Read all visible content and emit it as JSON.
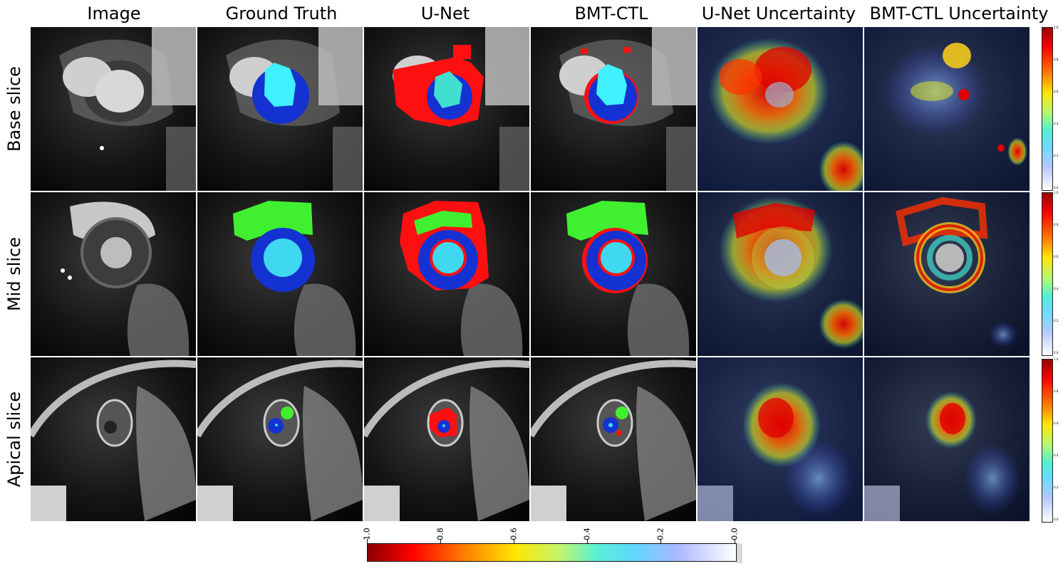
{
  "columns": [
    "Image",
    "Ground Truth",
    "U-Net",
    "BMT-CTL",
    "U-Net  Uncertainty",
    "BMT-CTL  Uncertainty"
  ],
  "rows": [
    "Base slice",
    "Mid slice",
    "Apical slice"
  ],
  "colorbar": {
    "ticks": [
      "1.0",
      "0.8",
      "0.6",
      "0.4",
      "0.2",
      "0.0"
    ],
    "min": 0.0,
    "max": 1.0,
    "colors": [
      "#8b0000",
      "#ff0000",
      "#ff7a00",
      "#ffe600",
      "#5cf0d2",
      "#aab8ff",
      "#ffffff"
    ]
  },
  "segmentation_colors": {
    "myocardium": "#1432d2",
    "lv_cavity": "#3ff0ff",
    "rv_cavity": "#40f030",
    "error": "#ff1010"
  }
}
